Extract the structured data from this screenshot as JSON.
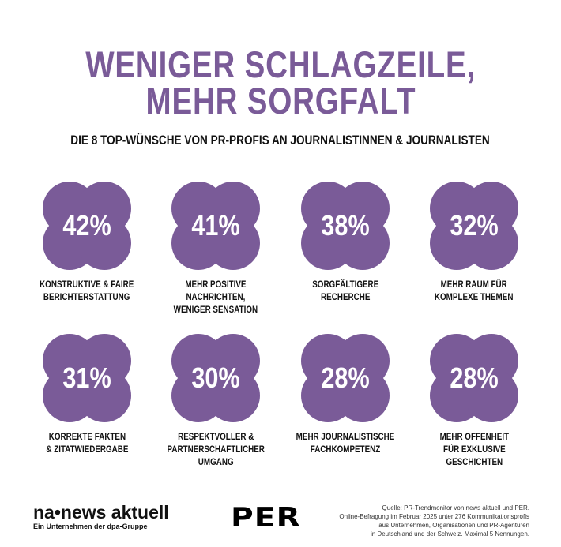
{
  "title_line1": "WENIGER SCHLAGZEILE,",
  "title_line2": "MEHR SORGFALT",
  "subtitle": "DIE 8 TOP-WÜNSCHE VON PR-PROFIS AN JOURNALISTINNEN & JOURNALISTEN",
  "accent_color": "#7a5b98",
  "chart_data": {
    "type": "table",
    "title": "WENIGER SCHLAGZEILE, MEHR SORGFALT",
    "subtitle": "DIE 8 TOP-WÜNSCHE VON PR-PROFIS AN JOURNALISTINNEN & JOURNALISTEN",
    "categories": [
      "KONSTRUKTIVE & FAIRE\nBERICHTERSTATTUNG",
      "MEHR POSITIVE\nNACHRICHTEN,\nWENIGER SENSATION",
      "SORGFÄLTIGERE\nRECHERCHE",
      "MEHR RAUM FÜR\nKOMPLEXE THEMEN",
      "KORREKTE FAKTEN\n& ZITATWIEDERGABE",
      "RESPEKTVOLLER &\nPARTNERSCHAFTLICHER\nUMGANG",
      "MEHR JOURNALISTISCHE\nFACHKOMPETENZ",
      "MEHR OFFENHEIT\nFÜR EXKLUSIVE\nGESCHICHTEN"
    ],
    "values": [
      42,
      41,
      38,
      32,
      31,
      30,
      28,
      28
    ],
    "value_labels": [
      "42%",
      "41%",
      "38%",
      "32%",
      "31%",
      "30%",
      "28%",
      "28%"
    ]
  },
  "footer": {
    "logo_na": "na•news aktuell",
    "logo_na_sub": "Ein Unternehmen der dpa-Gruppe",
    "logo_per": "PER",
    "source": "Quelle:  PR-Trendmonitor von news aktuell und PER.\nOnline-Befragung im Februar 2025 unter 276 Kommunikationsprofis\naus Unternehmen, Organisationen und PR-Agenturen\nin Deutschland und der Schweiz. Maximal 5 Nennungen."
  }
}
